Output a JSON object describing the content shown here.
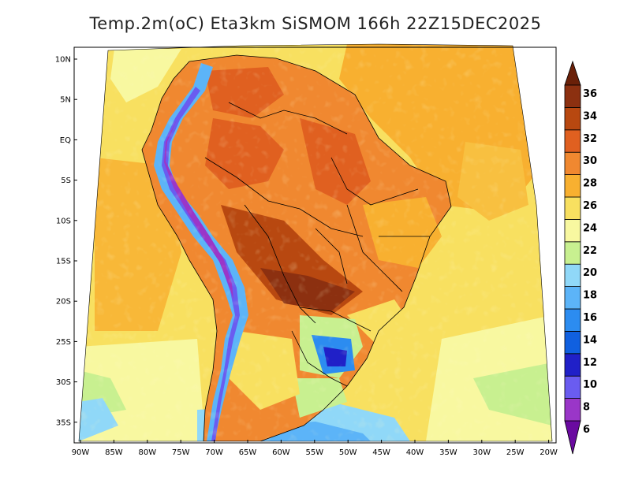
{
  "title": "Temp.2m(oC) Eta3km SiSMOM 166h 22Z15DEC2025",
  "map": {
    "lat_labels": [
      "10N",
      "5N",
      "EQ",
      "5S",
      "10S",
      "15S",
      "20S",
      "25S",
      "30S",
      "35S"
    ],
    "lon_labels": [
      "90W",
      "85W",
      "80W",
      "75W",
      "70W",
      "65W",
      "60W",
      "55W",
      "50W",
      "45W",
      "40W",
      "35W",
      "30W",
      "25W",
      "20W"
    ],
    "lat_range": [
      -38,
      12
    ],
    "lon_range": [
      -91,
      -20
    ],
    "projection": "Lambert conformal (fan-shaped domain)"
  },
  "colorbar": {
    "labels": [
      "6",
      "8",
      "10",
      "12",
      "14",
      "16",
      "18",
      "20",
      "22",
      "24",
      "26",
      "28",
      "30",
      "32",
      "34",
      "36"
    ],
    "colors": [
      "#6a0aa0",
      "#9a36c8",
      "#6a5cf0",
      "#2020c8",
      "#1060e0",
      "#2c8cf0",
      "#5cb4f8",
      "#90d8f8",
      "#c8f090",
      "#f8f8a0",
      "#f8e060",
      "#f8b030",
      "#f08830",
      "#e06020",
      "#b84810",
      "#8c3010",
      "#6a2008"
    ],
    "unit": "oC"
  }
}
